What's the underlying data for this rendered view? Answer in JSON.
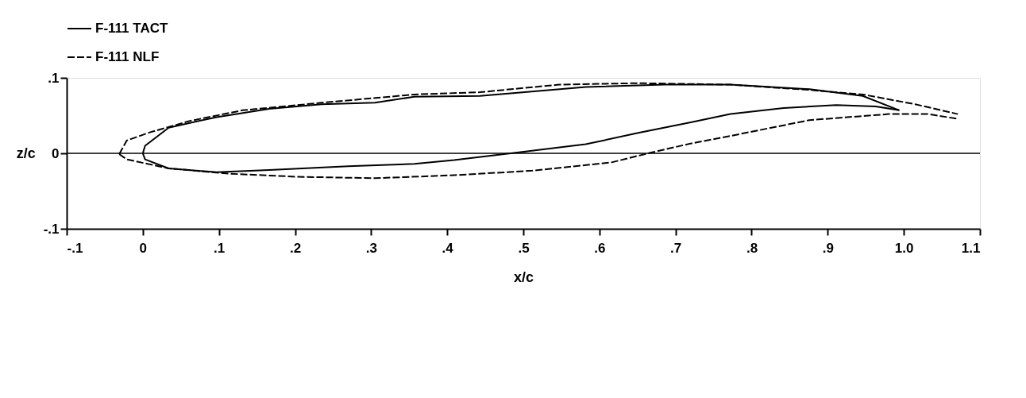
{
  "chart_data": {
    "type": "line",
    "xlabel": "x/c",
    "ylabel": "z/c",
    "xlim": [
      -0.1,
      1.1
    ],
    "ylim": [
      -0.1,
      0.1
    ],
    "xticks": [
      {
        "value": -0.1,
        "label": "-.1"
      },
      0,
      {
        "value": 0.1,
        "label": ".1"
      },
      {
        "value": 0.2,
        "label": ".2"
      },
      {
        "value": 0.3,
        "label": ".3"
      },
      {
        "value": 0.4,
        "label": ".4"
      },
      {
        "value": 0.5,
        "label": ".5"
      },
      {
        "value": 0.6,
        "label": ".6"
      },
      {
        "value": 0.7,
        "label": ".7"
      },
      {
        "value": 0.8,
        "label": ".8"
      },
      {
        "value": 0.9,
        "label": ".9"
      },
      {
        "value": 1.0,
        "label": "1.0"
      },
      {
        "value": 1.1,
        "label": "1.1"
      }
    ],
    "yticks": [
      {
        "value": -0.1,
        "label": "-.1"
      },
      0,
      {
        "value": 0.1,
        "label": ".1"
      }
    ],
    "grid": false,
    "legend": "top",
    "marker": "none",
    "ref_lines": [
      {
        "axis": "y",
        "value": 0,
        "color": "#000000",
        "line_style": "solid"
      }
    ],
    "series": [
      {
        "name": "F-111 TACT",
        "color": "#000000",
        "line_style": "solid",
        "x": [
          0,
          0.003,
          0.034,
          0.097,
          0.166,
          0.235,
          0.305,
          0.357,
          0.443,
          0.582,
          0.686,
          0.772,
          0.876,
          0.946,
          0.994
        ],
        "values": [
          0,
          0.01,
          0.034,
          0.048,
          0.059,
          0.065,
          0.067,
          0.075,
          0.076,
          0.088,
          0.091,
          0.091,
          0.085,
          0.076,
          0.057
        ]
      },
      {
        "color": "#000000",
        "line_style": "solid",
        "x": [
          0,
          0.003,
          0.034,
          0.097,
          0.166,
          0.27,
          0.357,
          0.409,
          0.492,
          0.582,
          0.651,
          0.72,
          0.772,
          0.842,
          0.911,
          0.963,
          0.994
        ],
        "values": [
          0,
          -0.008,
          -0.02,
          -0.025,
          -0.022,
          -0.017,
          -0.014,
          -0.009,
          0.001,
          0.012,
          0.027,
          0.041,
          0.052,
          0.06,
          0.064,
          0.062,
          0.057
        ]
      },
      {
        "name": "F-111 NLF",
        "color": "#000000",
        "line_style": "dashed",
        "x": [
          -0.031,
          -0.021,
          0.01,
          0.062,
          0.131,
          0.235,
          0.357,
          0.443,
          0.547,
          0.651,
          0.772,
          0.876,
          0.946,
          1.015,
          1.071
        ],
        "values": [
          -0.001,
          0.017,
          0.028,
          0.043,
          0.057,
          0.067,
          0.078,
          0.081,
          0.091,
          0.093,
          0.091,
          0.084,
          0.078,
          0.065,
          0.052
        ]
      },
      {
        "color": "#000000",
        "line_style": "dashed",
        "x": [
          -0.031,
          -0.021,
          0.034,
          0.114,
          0.201,
          0.305,
          0.409,
          0.512,
          0.616,
          0.668,
          0.72,
          0.772,
          0.876,
          0.98,
          1.032,
          1.069
        ],
        "values": [
          -0.001,
          -0.008,
          -0.02,
          -0.027,
          -0.031,
          -0.033,
          -0.029,
          -0.023,
          -0.012,
          0.001,
          0.013,
          0.023,
          0.044,
          0.052,
          0.052,
          0.046
        ]
      }
    ]
  }
}
